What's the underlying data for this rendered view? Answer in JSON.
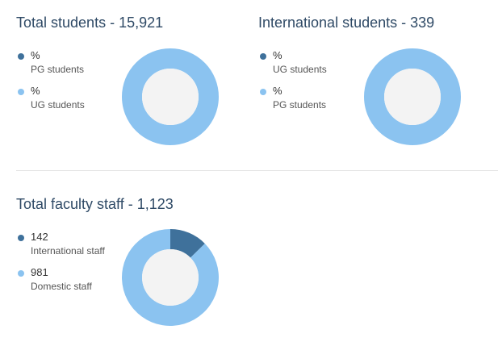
{
  "colors": {
    "primary": "#3f719b",
    "secondary": "#8bc3f0",
    "center": "#f3f3f3",
    "title": "#2f4a66"
  },
  "total_students": {
    "title": "Total students - 15,921",
    "legend": [
      {
        "value": "%",
        "label": "PG students",
        "color": "#3f719b"
      },
      {
        "value": "%",
        "label": "UG students",
        "color": "#8bc3f0"
      }
    ]
  },
  "international_students": {
    "title": "International students - 339",
    "legend": [
      {
        "value": "%",
        "label": "UG students",
        "color": "#3f719b"
      },
      {
        "value": "%",
        "label": "PG students",
        "color": "#8bc3f0"
      }
    ]
  },
  "faculty_staff": {
    "title": "Total faculty staff - 1,123",
    "legend": [
      {
        "value": "142",
        "label": "International staff",
        "color": "#3f719b"
      },
      {
        "value": "981",
        "label": "Domestic staff",
        "color": "#8bc3f0"
      }
    ]
  },
  "chart_data": [
    {
      "type": "pie",
      "title": "Total students - 15,921",
      "categories": [
        "PG students",
        "UG students"
      ],
      "values": [
        0,
        100
      ]
    },
    {
      "type": "pie",
      "title": "International students - 339",
      "categories": [
        "UG students",
        "PG students"
      ],
      "values": [
        0,
        100
      ]
    },
    {
      "type": "pie",
      "title": "Total faculty staff - 1,123",
      "categories": [
        "International staff",
        "Domestic staff"
      ],
      "values": [
        142,
        981
      ]
    }
  ]
}
